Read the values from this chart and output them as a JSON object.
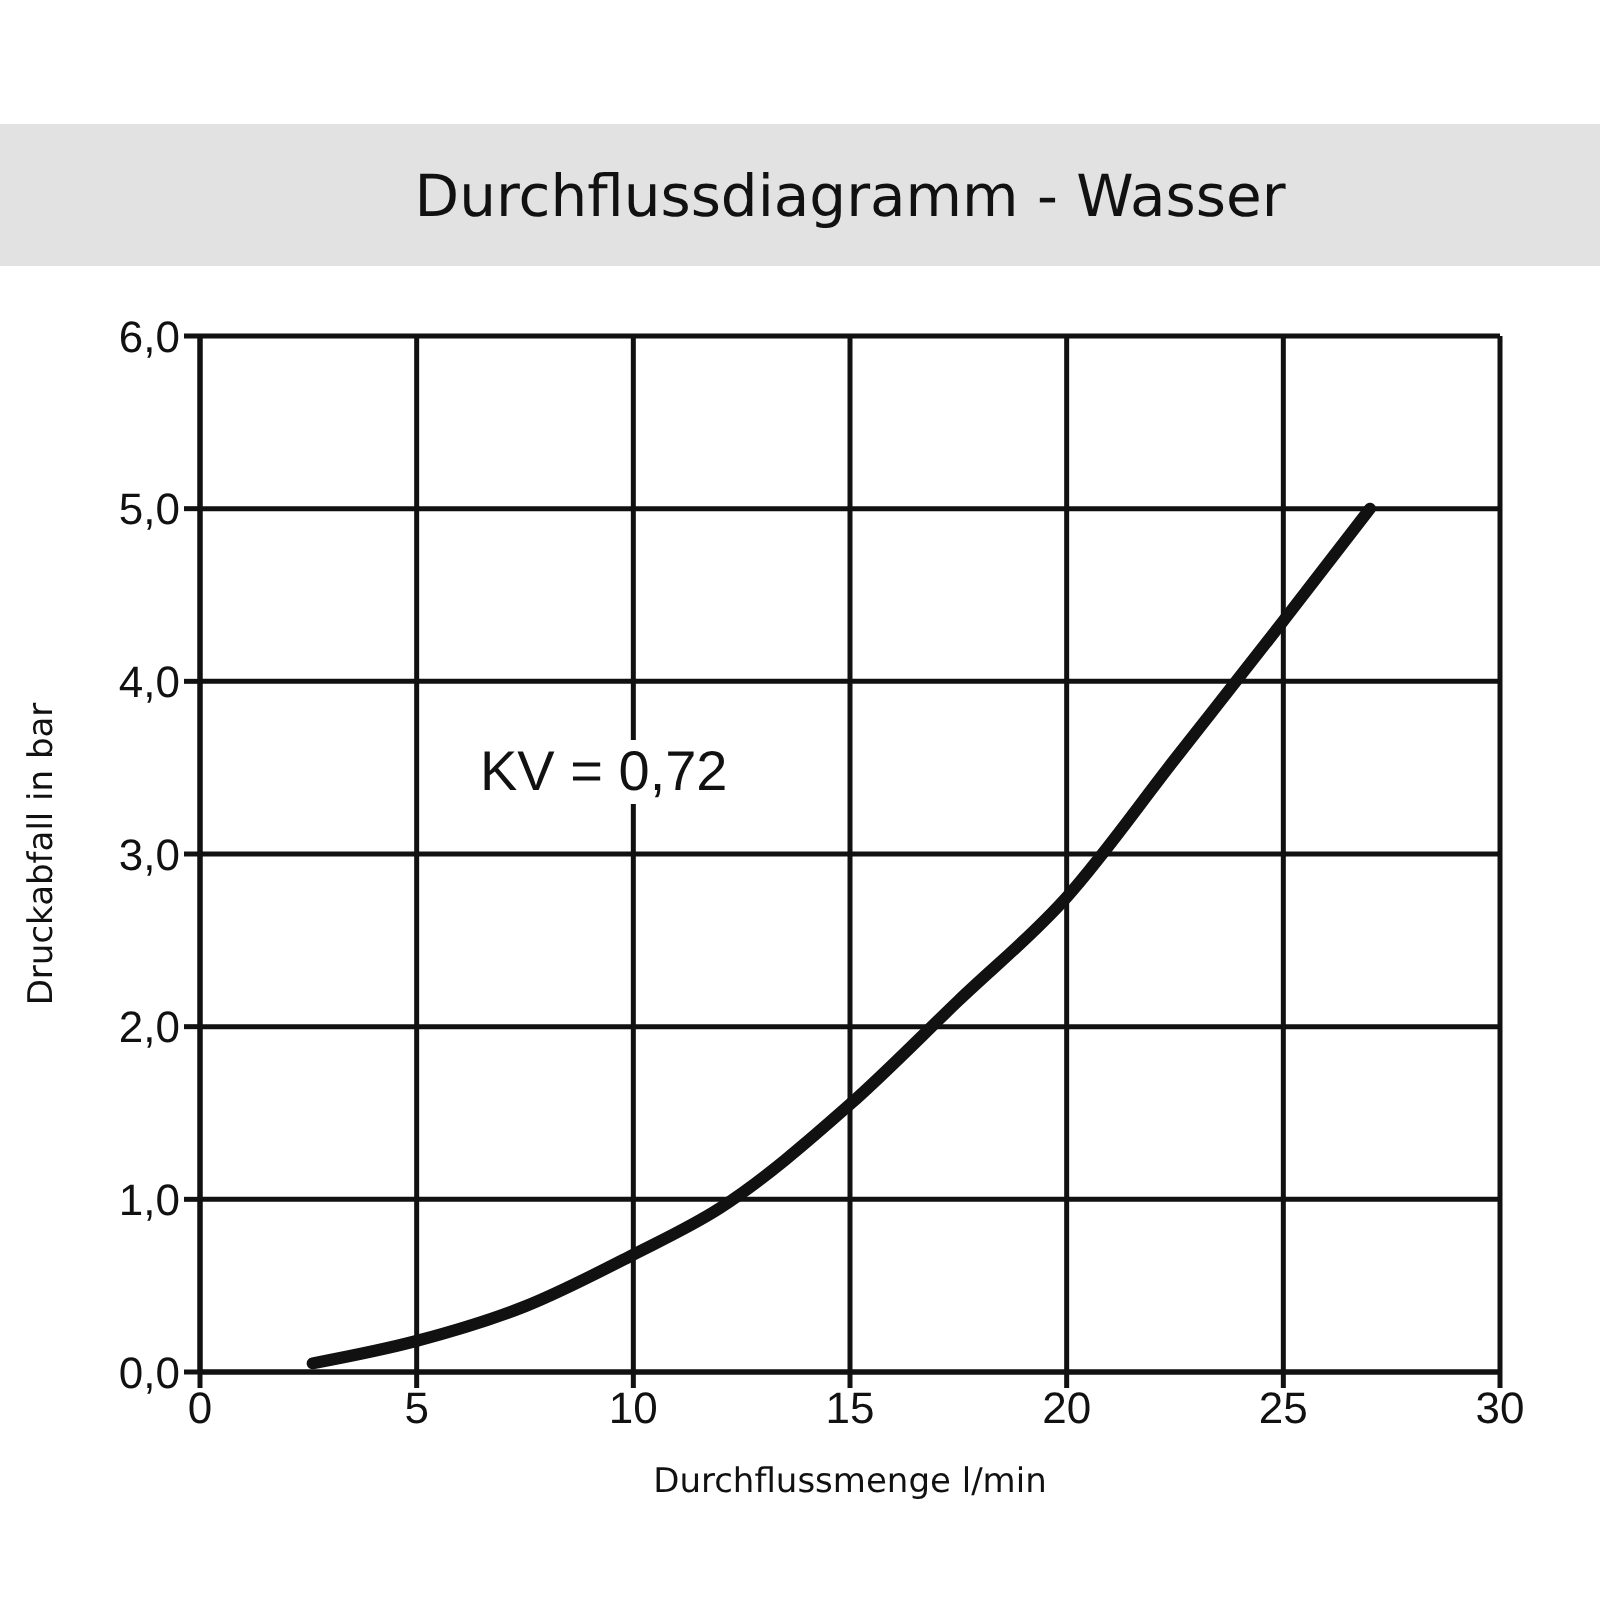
{
  "chart_data": {
    "type": "line",
    "title": "Durchflussdiagramm - Wasser",
    "xlabel": "Durchflussmenge l/min",
    "ylabel": "Druckabfall in bar",
    "annotations": [
      "KV = 0,72"
    ],
    "series": [
      {
        "color": "#111111",
        "x": [
          2.6,
          5,
          7.5,
          10,
          12,
          15,
          17.5,
          20,
          22.5,
          25,
          27
        ],
        "values": [
          0.05,
          0.18,
          0.38,
          0.68,
          0.95,
          1.55,
          2.15,
          2.75,
          3.55,
          4.35,
          5.0
        ]
      }
    ],
    "xlim": [
      0,
      30
    ],
    "xticks": [
      0,
      5,
      10,
      15,
      20,
      25,
      30
    ],
    "ylim": [
      0,
      6
    ],
    "yticks": [
      {
        "value": 0,
        "label": "0,0"
      },
      {
        "value": 1,
        "label": "1,0"
      },
      {
        "value": 2,
        "label": "2,0"
      },
      {
        "value": 3,
        "label": "3,0"
      },
      {
        "value": 4,
        "label": "4,0"
      },
      {
        "value": 5,
        "label": "5,0"
      },
      {
        "value": 6,
        "label": "6,0"
      }
    ],
    "grid": true,
    "marker": "none",
    "line_style": "solid",
    "legend": false
  }
}
